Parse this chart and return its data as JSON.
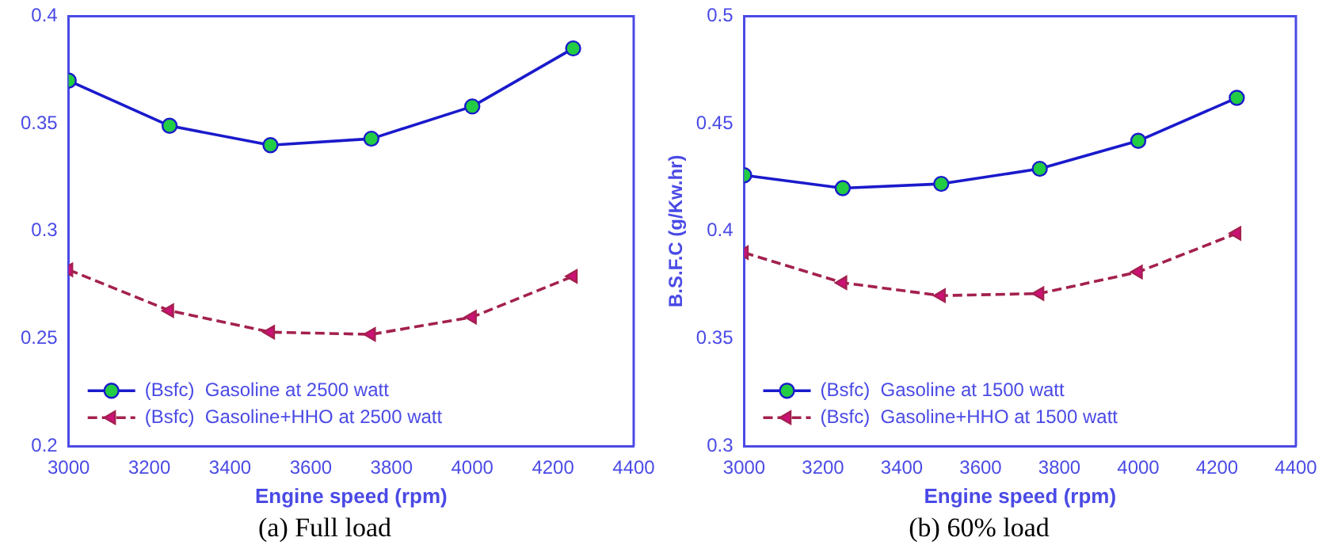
{
  "chart_data": [
    {
      "type": "line",
      "title": "(a) Full load",
      "xlabel": "Engine speed (rpm)",
      "x": [
        3000,
        3250,
        3500,
        3750,
        4000,
        4250
      ],
      "xlim": [
        3000,
        4400
      ],
      "xticks": [
        3000,
        3200,
        3400,
        3600,
        3800,
        4000,
        4200,
        4400
      ],
      "ylim": [
        0.2,
        0.4
      ],
      "yticks": [
        0.2,
        0.25,
        0.3,
        0.35,
        0.4
      ],
      "grid": false,
      "legend": "bottom left",
      "series": [
        {
          "name": "(Bsfc)  Gasoline at 2500 watt",
          "color": "#1a1acc",
          "marker": "circle",
          "line_style": "solid",
          "values": [
            0.37,
            0.349,
            0.34,
            0.343,
            0.358,
            0.385
          ]
        },
        {
          "name": "(Bsfc)  Gasoline+HHO at 2500 watt",
          "color": "#a3204f",
          "marker": "triangle",
          "line_style": "dashed",
          "values": [
            0.282,
            0.263,
            0.253,
            0.252,
            0.26,
            0.279
          ]
        }
      ]
    },
    {
      "type": "line",
      "title": "(b) 60% load",
      "xlabel": "Engine speed (rpm)",
      "ylabel": "B.S.F.C (g/Kw.hr)",
      "x": [
        3000,
        3250,
        3500,
        3750,
        4000,
        4250
      ],
      "xlim": [
        3000,
        4400
      ],
      "xticks": [
        3000,
        3200,
        3400,
        3600,
        3800,
        4000,
        4200,
        4400
      ],
      "ylim": [
        0.3,
        0.5
      ],
      "yticks": [
        0.3,
        0.35,
        0.4,
        0.45,
        0.5
      ],
      "grid": false,
      "legend": "bottom left",
      "series": [
        {
          "name": "(Bsfc)  Gasoline at 1500 watt",
          "color": "#1a1acc",
          "marker": "circle",
          "line_style": "solid",
          "values": [
            0.426,
            0.42,
            0.422,
            0.429,
            0.442,
            0.462
          ]
        },
        {
          "name": "(Bsfc)  Gasoline+HHO at 1500 watt",
          "color": "#a3204f",
          "marker": "triangle",
          "line_style": "dashed",
          "values": [
            0.39,
            0.376,
            0.37,
            0.371,
            0.381,
            0.399
          ]
        }
      ]
    }
  ]
}
